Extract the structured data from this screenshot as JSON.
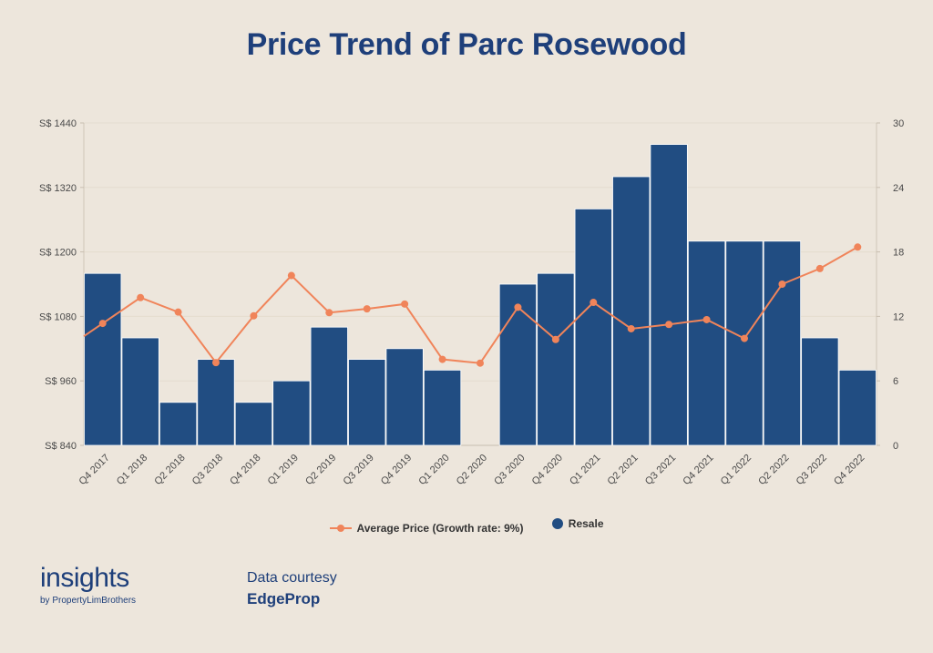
{
  "title": "Price Trend of Parc Rosewood",
  "legend": {
    "line_label": "Average Price (Growth rate: 9%)",
    "bar_label": "Resale"
  },
  "brand": {
    "name": "insights",
    "sub": "by PropertyLimBrothers"
  },
  "courtesy": {
    "label": "Data courtesy",
    "source": "EdgeProp"
  },
  "colors": {
    "bar": "#214d82",
    "line": "#f0845a",
    "background": "#ede6dc",
    "accent": "#1e3f7a"
  },
  "chart_data": {
    "type": "bar",
    "categories": [
      "Q4 2017",
      "Q1 2018",
      "Q2 2018",
      "Q3 2018",
      "Q4 2018",
      "Q1 2019",
      "Q2 2019",
      "Q3 2019",
      "Q4 2019",
      "Q1 2020",
      "Q2 2020",
      "Q3 2020",
      "Q4 2020",
      "Q1 2021",
      "Q2 2021",
      "Q3 2021",
      "Q4 2021",
      "Q1 2022",
      "Q2 2022",
      "Q3 2022",
      "Q4 2022"
    ],
    "series": [
      {
        "name": "Resale",
        "type": "bar",
        "axis": "right",
        "values": [
          16,
          10,
          4,
          8,
          4,
          6,
          11,
          8,
          9,
          7,
          0,
          15,
          16,
          22,
          25,
          28,
          19,
          19,
          19,
          10,
          7
        ]
      },
      {
        "name": "Average Price (Growth rate: 9%)",
        "type": "line",
        "axis": "left",
        "values": [
          1067,
          1115,
          1088,
          994,
          1081,
          1156,
          1087,
          1094,
          1103,
          1000,
          993,
          1097,
          1037,
          1106,
          1057,
          1065,
          1074,
          1039,
          1140,
          1169,
          1209
        ]
      }
    ],
    "y_left": {
      "ticks": [
        "S$ 840",
        "S$ 960",
        "S$ 1080",
        "S$ 1200",
        "S$ 1320",
        "S$ 1440"
      ],
      "range": [
        840,
        1440
      ]
    },
    "y_right": {
      "ticks": [
        "0",
        "6",
        "12",
        "18",
        "24",
        "30"
      ],
      "range": [
        0,
        30
      ]
    },
    "legend_position": "bottom-center"
  }
}
